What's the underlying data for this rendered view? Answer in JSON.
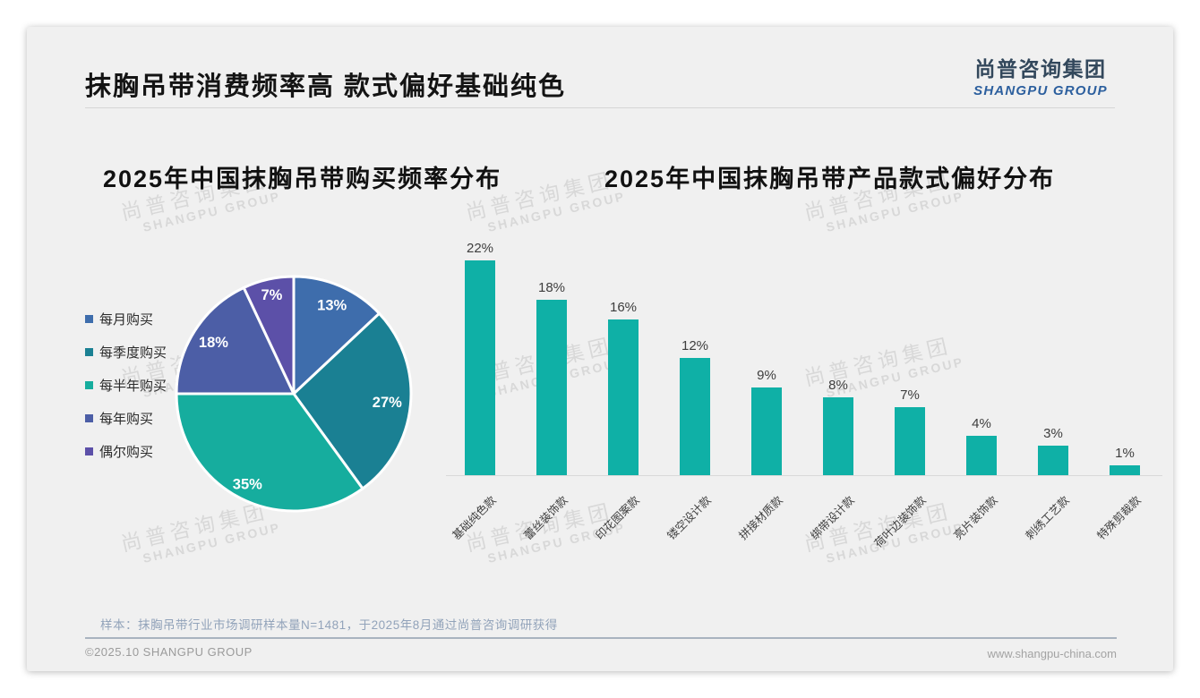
{
  "page": {
    "title": "抹胸吊带消费频率高 款式偏好基础纯色",
    "logo": {
      "cn": "尚普咨询集团",
      "en": "SHANGPU GROUP"
    },
    "watermark": {
      "cn": "尚普咨询集团",
      "en": "SHANGPU GROUP"
    },
    "note": "样本：抹胸吊带行业市场调研样本量N=1481，于2025年8月通过尚普咨询调研获得",
    "footer": {
      "copyright": "©2025.10 SHANGPU GROUP",
      "website": "www.shangpu-china.com"
    }
  },
  "colors": {
    "slide_background": "#f0f0f0",
    "accent_teal": "#0fb0a6",
    "logo_cn": "#33485c",
    "logo_en": "#2c5f9e",
    "note_text": "#92a3ba",
    "footer_text": "#9b9b9b",
    "watermark": "#d4d4d4",
    "axis_line": "#d9d9d9"
  },
  "chart_data": [
    {
      "type": "pie",
      "title": "2025年中国抹胸吊带购买频率分布",
      "categories": [
        "每月购买",
        "每季度购买",
        "每半年购买",
        "每年购买",
        "偶尔购买"
      ],
      "values": [
        13,
        27,
        35,
        18,
        7
      ],
      "unit": "%",
      "colors": [
        "#3e6dac",
        "#1a8093",
        "#16ad9e",
        "#4c5ea6",
        "#5c50a8"
      ],
      "legend_position": "left",
      "start_angle_deg": 0,
      "direction": "clockwise",
      "data_labels": "inside, white bold",
      "slice_border_color": "#ffffff"
    },
    {
      "type": "bar",
      "title": "2025年中国抹胸吊带产品款式偏好分布",
      "categories": [
        "基础纯色款",
        "蕾丝装饰款",
        "印花图案款",
        "镂空设计款",
        "拼接材质款",
        "绑带设计款",
        "荷叶边装饰款",
        "亮片装饰款",
        "刺绣工艺款",
        "特殊剪裁款"
      ],
      "values": [
        22,
        18,
        16,
        12,
        9,
        8,
        7,
        4,
        3,
        1
      ],
      "unit": "%",
      "bar_color": "#0fb0a6",
      "ylim": [
        0,
        24
      ],
      "grid": false,
      "value_labels": true,
      "category_label_rotation": -45
    }
  ]
}
